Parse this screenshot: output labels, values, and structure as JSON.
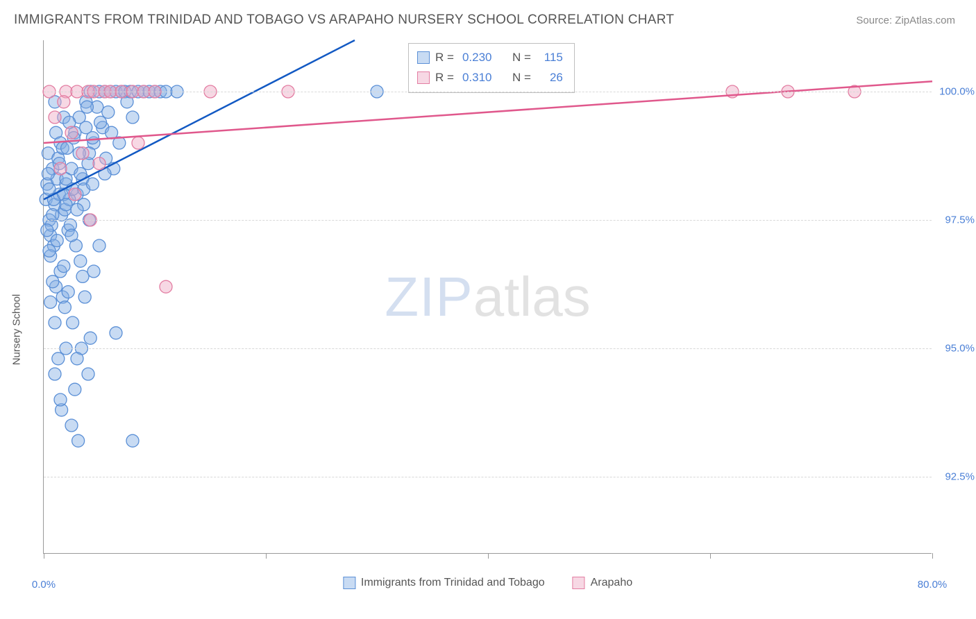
{
  "header": {
    "title": "IMMIGRANTS FROM TRINIDAD AND TOBAGO VS ARAPAHO NURSERY SCHOOL CORRELATION CHART",
    "source_label": "Source: ",
    "source_name": "ZipAtlas.com"
  },
  "watermark": {
    "part1": "ZIP",
    "part2": "atlas"
  },
  "chart": {
    "type": "scatter",
    "xlim": [
      0,
      80
    ],
    "ylim": [
      91,
      101
    ],
    "y_axis_title": "Nursery School",
    "x_ticks": [
      0,
      20,
      40,
      60,
      80
    ],
    "y_ticks": [
      92.5,
      95.0,
      97.5,
      100.0
    ],
    "x_tick_labels": [
      "0.0%",
      "",
      "",
      "",
      "80.0%"
    ],
    "y_tick_labels": [
      "92.5%",
      "95.0%",
      "97.5%",
      "100.0%"
    ],
    "grid_color": "#d8d8d8",
    "background_color": "#ffffff",
    "axis_color": "#999999",
    "label_color": "#4a7fd6",
    "label_fontsize": 15,
    "series": [
      {
        "name": "Immigrants from Trinidad and Tobago",
        "color_stroke": "#5a8fd6",
        "color_fill": "rgba(133,176,228,0.45)",
        "line_color": "#1259c3",
        "marker_radius": 9,
        "stats": {
          "R": "0.230",
          "N": "115"
        },
        "trend": {
          "x1": 0,
          "y1": 97.9,
          "x2": 28,
          "y2": 101
        },
        "points": [
          [
            0.2,
            97.9
          ],
          [
            0.3,
            98.2
          ],
          [
            0.5,
            97.5
          ],
          [
            0.4,
            98.8
          ],
          [
            0.6,
            97.2
          ],
          [
            0.8,
            98.5
          ],
          [
            1.0,
            97.8
          ],
          [
            1.2,
            98.3
          ],
          [
            0.9,
            97.0
          ],
          [
            1.1,
            99.2
          ],
          [
            1.4,
            98.0
          ],
          [
            0.7,
            97.4
          ],
          [
            1.3,
            98.7
          ],
          [
            1.6,
            97.6
          ],
          [
            1.8,
            99.5
          ],
          [
            0.5,
            98.1
          ],
          [
            1.0,
            99.8
          ],
          [
            2.0,
            98.2
          ],
          [
            2.2,
            97.3
          ],
          [
            1.5,
            99.0
          ],
          [
            2.5,
            98.5
          ],
          [
            1.7,
            98.9
          ],
          [
            2.8,
            99.2
          ],
          [
            3.0,
            98.0
          ],
          [
            1.9,
            97.7
          ],
          [
            3.2,
            99.5
          ],
          [
            3.5,
            98.3
          ],
          [
            2.3,
            97.9
          ],
          [
            3.8,
            99.8
          ],
          [
            4.0,
            98.6
          ],
          [
            2.6,
            98.1
          ],
          [
            4.2,
            100.0
          ],
          [
            4.5,
            99.0
          ],
          [
            3.3,
            98.4
          ],
          [
            4.8,
            99.7
          ],
          [
            5.0,
            100.0
          ],
          [
            3.6,
            97.8
          ],
          [
            5.3,
            99.3
          ],
          [
            5.5,
            100.0
          ],
          [
            4.1,
            98.8
          ],
          [
            5.8,
            99.6
          ],
          [
            6.0,
            100.0
          ],
          [
            4.4,
            99.1
          ],
          [
            6.3,
            98.5
          ],
          [
            6.5,
            100.0
          ],
          [
            5.1,
            99.4
          ],
          [
            6.8,
            99.0
          ],
          [
            7.0,
            100.0
          ],
          [
            5.6,
            98.7
          ],
          [
            7.3,
            100.0
          ],
          [
            7.5,
            99.8
          ],
          [
            6.1,
            99.2
          ],
          [
            7.8,
            100.0
          ],
          [
            8.0,
            99.5
          ],
          [
            8.5,
            100.0
          ],
          [
            9.0,
            100.0
          ],
          [
            9.5,
            100.0
          ],
          [
            10.0,
            100.0
          ],
          [
            10.5,
            100.0
          ],
          [
            11.0,
            100.0
          ],
          [
            12.0,
            100.0
          ],
          [
            30.0,
            100.0
          ],
          [
            0.3,
            97.3
          ],
          [
            0.6,
            96.8
          ],
          [
            0.9,
            97.9
          ],
          [
            1.2,
            97.1
          ],
          [
            0.4,
            98.4
          ],
          [
            1.5,
            96.5
          ],
          [
            1.8,
            98.0
          ],
          [
            0.8,
            97.6
          ],
          [
            2.1,
            98.9
          ],
          [
            1.1,
            96.2
          ],
          [
            2.4,
            97.4
          ],
          [
            1.4,
            98.6
          ],
          [
            2.7,
            99.1
          ],
          [
            1.7,
            96.0
          ],
          [
            3.0,
            97.7
          ],
          [
            2.0,
            98.3
          ],
          [
            3.3,
            96.7
          ],
          [
            2.3,
            99.4
          ],
          [
            3.6,
            98.1
          ],
          [
            2.6,
            95.5
          ],
          [
            3.9,
            99.7
          ],
          [
            2.9,
            97.0
          ],
          [
            4.2,
            95.2
          ],
          [
            3.2,
            98.8
          ],
          [
            1.0,
            94.5
          ],
          [
            3.5,
            96.4
          ],
          [
            2.0,
            95.0
          ],
          [
            3.8,
            99.3
          ],
          [
            1.3,
            94.8
          ],
          [
            4.1,
            97.5
          ],
          [
            2.5,
            93.5
          ],
          [
            4.4,
            98.2
          ],
          [
            1.6,
            93.8
          ],
          [
            0.5,
            96.9
          ],
          [
            2.8,
            94.2
          ],
          [
            1.9,
            95.8
          ],
          [
            3.1,
            93.2
          ],
          [
            8.0,
            93.2
          ],
          [
            4.0,
            94.5
          ],
          [
            2.2,
            96.1
          ],
          [
            5.0,
            97.0
          ],
          [
            1.0,
            95.5
          ],
          [
            3.4,
            95.0
          ],
          [
            0.8,
            96.3
          ],
          [
            2.5,
            97.2
          ],
          [
            1.5,
            94.0
          ],
          [
            4.5,
            96.5
          ],
          [
            0.6,
            95.9
          ],
          [
            3.0,
            94.8
          ],
          [
            1.8,
            96.6
          ],
          [
            5.5,
            98.4
          ],
          [
            2.0,
            97.8
          ],
          [
            6.5,
            95.3
          ],
          [
            3.7,
            96.0
          ]
        ]
      },
      {
        "name": "Arapaho",
        "color_stroke": "#e37da2",
        "color_fill": "rgba(238,168,195,0.45)",
        "line_color": "#e0588c",
        "marker_radius": 9,
        "stats": {
          "R": "0.310",
          "N": "26"
        },
        "trend": {
          "x1": 0,
          "y1": 99.0,
          "x2": 80,
          "y2": 100.2
        },
        "points": [
          [
            0.5,
            100.0
          ],
          [
            1.5,
            98.5
          ],
          [
            2.0,
            100.0
          ],
          [
            2.5,
            99.2
          ],
          [
            3.0,
            100.0
          ],
          [
            3.5,
            98.8
          ],
          [
            4.0,
            100.0
          ],
          [
            4.5,
            100.0
          ],
          [
            5.0,
            98.6
          ],
          [
            5.5,
            100.0
          ],
          [
            6.0,
            100.0
          ],
          [
            7.0,
            100.0
          ],
          [
            8.0,
            100.0
          ],
          [
            8.5,
            99.0
          ],
          [
            9.0,
            100.0
          ],
          [
            10.0,
            100.0
          ],
          [
            11.0,
            96.2
          ],
          [
            15.0,
            100.0
          ],
          [
            22.0,
            100.0
          ],
          [
            1.0,
            99.5
          ],
          [
            62.0,
            100.0
          ],
          [
            67.0,
            100.0
          ],
          [
            73.0,
            100.0
          ],
          [
            2.8,
            98.0
          ],
          [
            4.2,
            97.5
          ],
          [
            1.8,
            99.8
          ]
        ]
      }
    ],
    "bottom_legend": [
      {
        "label": "Immigrants from Trinidad and Tobago",
        "stroke": "#5a8fd6",
        "fill": "rgba(133,176,228,0.45)"
      },
      {
        "label": "Arapaho",
        "stroke": "#e37da2",
        "fill": "rgba(238,168,195,0.45)"
      }
    ]
  }
}
